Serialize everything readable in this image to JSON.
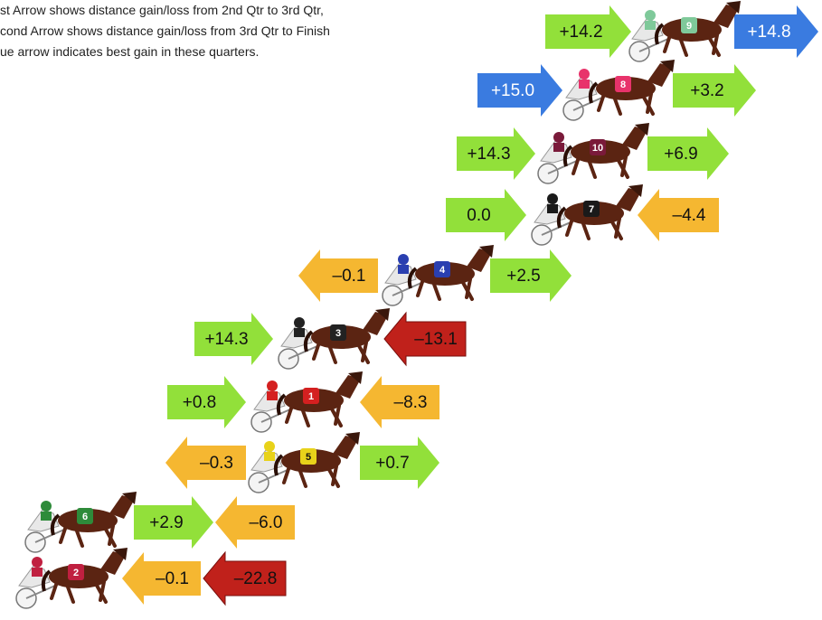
{
  "notes": [
    "st Arrow shows distance gain/loss from 2nd Qtr to 3rd Qtr,",
    "cond Arrow shows distance gain/loss from 3rd Qtr to Finish",
    "ue arrow indicates best gain in these quarters."
  ],
  "rows": [
    {
      "horse": "9",
      "cloth_color": "#7fc99a",
      "arrows": [
        {
          "text": "+14.2",
          "color": "#92e03a",
          "direction": "right"
        },
        {
          "text": "+14.8",
          "color": "#3a7be0",
          "direction": "right"
        }
      ]
    },
    {
      "horse": "8",
      "cloth_color": "#e8336b",
      "arrows": [
        {
          "text": "+15.0",
          "color": "#3a7be0",
          "direction": "right"
        },
        {
          "text": "+3.2",
          "color": "#92e03a",
          "direction": "right"
        }
      ]
    },
    {
      "horse": "10",
      "cloth_color": "#7a1a3a",
      "arrows": [
        {
          "text": "+14.3",
          "color": "#92e03a",
          "direction": "right"
        },
        {
          "text": "+6.9",
          "color": "#92e03a",
          "direction": "right"
        }
      ]
    },
    {
      "horse": "7",
      "cloth_color": "#1a1a1a",
      "arrows": [
        {
          "text": "0.0",
          "color": "#92e03a",
          "direction": "right"
        },
        {
          "text": "–4.4",
          "color": "#f5b731",
          "direction": "left"
        }
      ]
    },
    {
      "horse": "4",
      "cloth_color": "#2a3fb0",
      "arrows": [
        {
          "text": "–0.1",
          "color": "#f5b731",
          "direction": "left"
        },
        {
          "text": "+2.5",
          "color": "#92e03a",
          "direction": "right"
        }
      ]
    },
    {
      "horse": "3",
      "cloth_color": "#222222",
      "arrows": [
        {
          "text": "+14.3",
          "color": "#92e03a",
          "direction": "right"
        },
        {
          "text": "–13.1",
          "color": "#c0211b",
          "direction": "left"
        }
      ]
    },
    {
      "horse": "1",
      "cloth_color": "#d42020",
      "arrows": [
        {
          "text": "+0.8",
          "color": "#92e03a",
          "direction": "right"
        },
        {
          "text": "–8.3",
          "color": "#f5b731",
          "direction": "left"
        }
      ]
    },
    {
      "horse": "5",
      "cloth_color": "#e8d21a",
      "arrows": [
        {
          "text": "–0.3",
          "color": "#f5b731",
          "direction": "left"
        },
        {
          "text": "+0.7",
          "color": "#92e03a",
          "direction": "right"
        }
      ]
    },
    {
      "horse": "6",
      "cloth_color": "#2e8b3a",
      "arrows": [
        {
          "text": "+2.9",
          "color": "#92e03a",
          "direction": "right"
        },
        {
          "text": "–6.0",
          "color": "#f5b731",
          "direction": "left"
        }
      ]
    },
    {
      "horse": "2",
      "cloth_color": "#c02040",
      "arrows": [
        {
          "text": "–0.1",
          "color": "#f5b731",
          "direction": "left"
        },
        {
          "text": "–22.8",
          "color": "#c0211b",
          "direction": "left"
        }
      ]
    }
  ]
}
